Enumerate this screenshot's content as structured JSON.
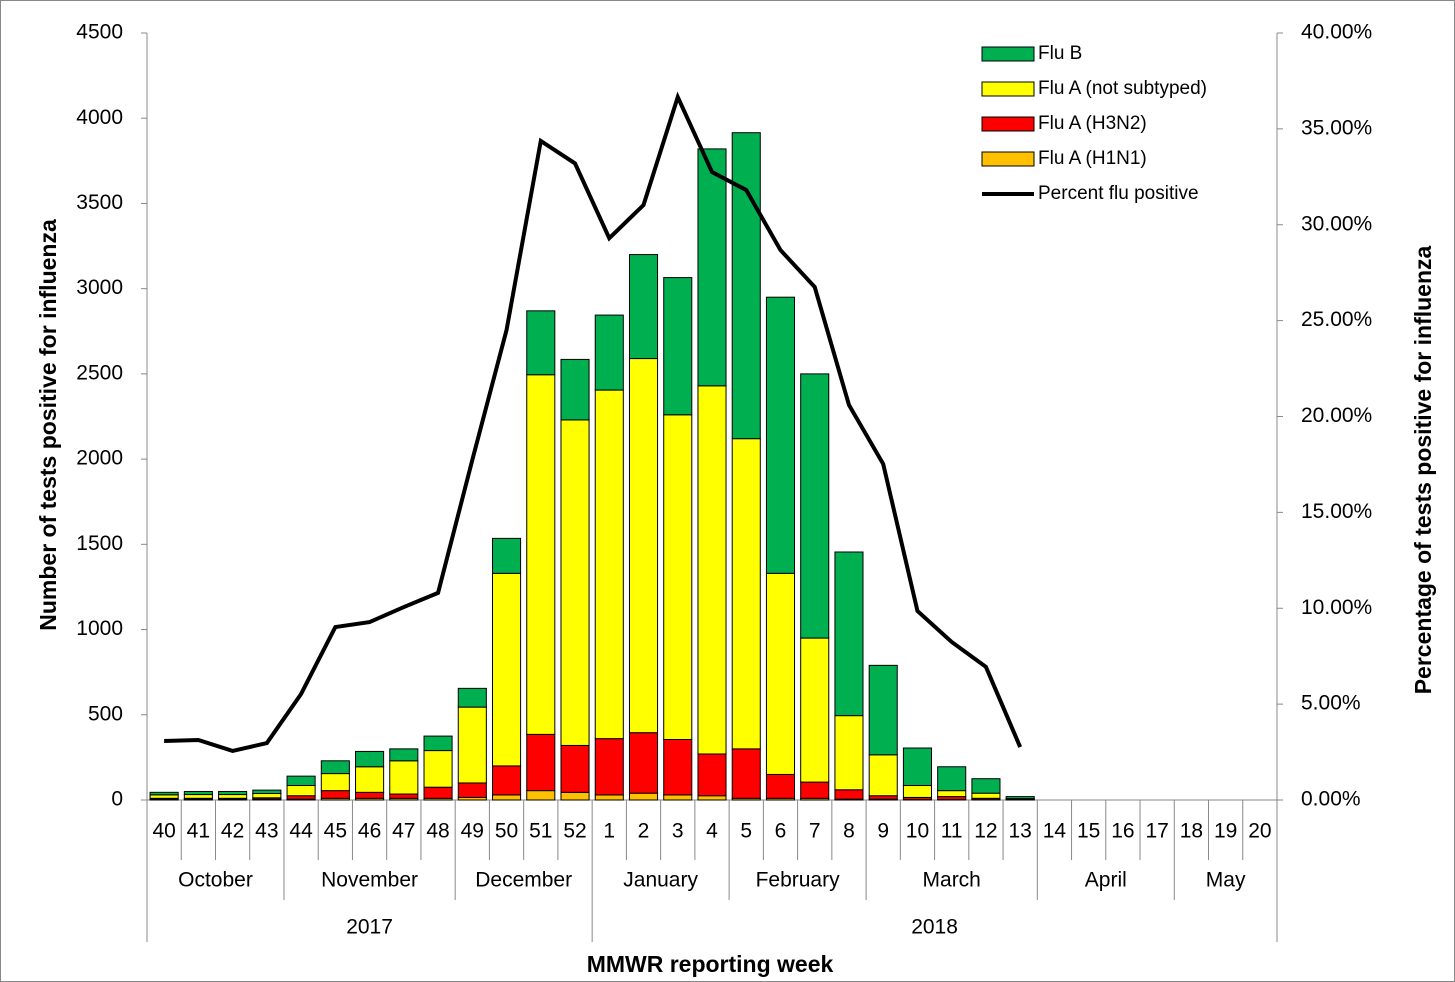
{
  "chart_data": {
    "type": "bar",
    "stacked": true,
    "categories": [
      "40",
      "41",
      "42",
      "43",
      "44",
      "45",
      "46",
      "47",
      "48",
      "49",
      "50",
      "51",
      "52",
      "1",
      "2",
      "3",
      "4",
      "5",
      "6",
      "7",
      "8",
      "9",
      "10",
      "11",
      "12",
      "13",
      "14",
      "15",
      "16",
      "17",
      "18",
      "19",
      "20"
    ],
    "months": [
      "October",
      "October",
      "October",
      "October",
      "November",
      "November",
      "November",
      "November",
      "November",
      "December",
      "December",
      "December",
      "December",
      "January",
      "January",
      "January",
      "January",
      "February",
      "February",
      "February",
      "February",
      "March",
      "March",
      "March",
      "March",
      "March",
      "April",
      "April",
      "April",
      "April",
      "May",
      "May",
      "May"
    ],
    "years": [
      "2017",
      "2017",
      "2017",
      "2017",
      "2017",
      "2017",
      "2017",
      "2017",
      "2017",
      "2017",
      "2017",
      "2017",
      "2017",
      "2018",
      "2018",
      "2018",
      "2018",
      "2018",
      "2018",
      "2018",
      "2018",
      "2018",
      "2018",
      "2018",
      "2018",
      "2018",
      "2018",
      "2018",
      "2018",
      "2018",
      "2018",
      "2018",
      "2018"
    ],
    "xlabel": "MMWR reporting week",
    "ylabel": "Number of tests positive for influenza",
    "y2label": "Percentage of  tests  positive for influenza",
    "ylim": [
      0,
      4500
    ],
    "yticks": [
      0,
      500,
      1000,
      1500,
      2000,
      2500,
      3000,
      3500,
      4000,
      4500
    ],
    "y2lim": [
      0,
      40
    ],
    "y2ticks": [
      {
        "value": 0,
        "label": "0.00%"
      },
      {
        "value": 5,
        "label": "5.00%"
      },
      {
        "value": 10,
        "label": "10.00%"
      },
      {
        "value": 15,
        "label": "15.00%"
      },
      {
        "value": 20,
        "label": "20.00%"
      },
      {
        "value": 25,
        "label": "25.00%"
      },
      {
        "value": 30,
        "label": "30.00%"
      },
      {
        "value": 35,
        "label": "35.00%"
      },
      {
        "value": 40,
        "label": "40.00%"
      }
    ],
    "legend": "upper right",
    "series": [
      {
        "name": "Flu A (H1N1)",
        "color": "#ffc000",
        "values": [
          5,
          5,
          5,
          5,
          5,
          10,
          10,
          10,
          10,
          15,
          30,
          55,
          45,
          30,
          40,
          30,
          25,
          10,
          10,
          10,
          5,
          5,
          3,
          3,
          2,
          1,
          null,
          null,
          null,
          null,
          null,
          null,
          null
        ]
      },
      {
        "name": "Flu A (H3N2)",
        "color": "#ff0000",
        "values": [
          5,
          5,
          5,
          8,
          20,
          45,
          35,
          25,
          65,
          85,
          170,
          330,
          275,
          330,
          355,
          325,
          245,
          290,
          140,
          95,
          55,
          20,
          12,
          17,
          8,
          2,
          null,
          null,
          null,
          null,
          null,
          null,
          null
        ]
      },
      {
        "name": "Flu A (not subtyped)",
        "color": "#ffff00",
        "values": [
          20,
          22,
          22,
          25,
          60,
          100,
          150,
          195,
          215,
          445,
          1130,
          2110,
          1910,
          2045,
          2195,
          1905,
          2160,
          1820,
          1180,
          845,
          435,
          240,
          70,
          35,
          30,
          5,
          null,
          null,
          null,
          null,
          null,
          null,
          null
        ]
      },
      {
        "name": "Flu B",
        "color": "#00b050",
        "values": [
          15,
          18,
          18,
          20,
          55,
          75,
          90,
          70,
          85,
          110,
          205,
          375,
          355,
          440,
          610,
          805,
          1390,
          1795,
          1620,
          1550,
          960,
          525,
          220,
          140,
          85,
          12,
          null,
          null,
          null,
          null,
          null,
          null,
          null
        ]
      },
      {
        "name": "Percent flu positive",
        "color": "#000000",
        "axis": "y2",
        "values": [
          3.08,
          3.13,
          2.56,
          2.97,
          5.53,
          9.02,
          9.28,
          10.06,
          10.8,
          17.73,
          24.51,
          34.37,
          33.2,
          29.3,
          31.03,
          36.66,
          32.75,
          31.81,
          28.68,
          26.75,
          20.6,
          17.52,
          9.86,
          8.24,
          6.94,
          2.76,
          null,
          null,
          null,
          null,
          null,
          null,
          null
        ]
      }
    ]
  }
}
